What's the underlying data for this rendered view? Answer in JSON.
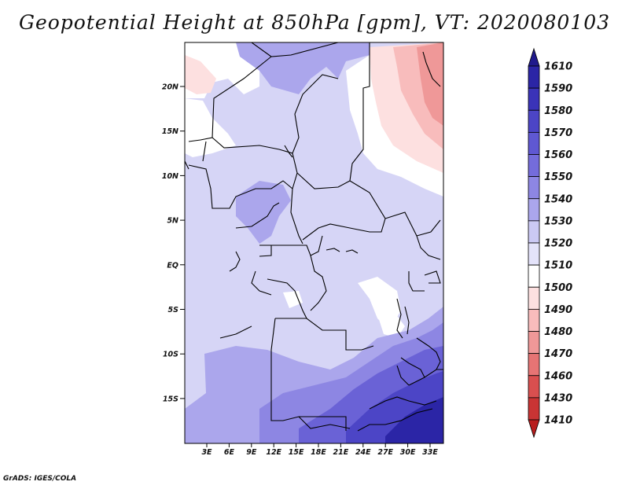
{
  "title": "Geopotential Height at 850hPa [gpm], VT: 2020080103",
  "credit": "GrADS: IGES/COLA",
  "lat_ticks": [
    "20N",
    "15N",
    "10N",
    "5N",
    "EQ",
    "5S",
    "10S",
    "15S"
  ],
  "lon_ticks": [
    "3E",
    "6E",
    "9E",
    "12E",
    "15E",
    "18E",
    "21E",
    "24E",
    "27E",
    "30E",
    "33E"
  ],
  "colorbar": {
    "levels": [
      "1610",
      "1590",
      "1580",
      "1570",
      "1560",
      "1550",
      "1540",
      "1530",
      "1520",
      "1510",
      "1500",
      "1490",
      "1480",
      "1470",
      "1460",
      "1430",
      "1410"
    ],
    "colors": [
      "#201a8c",
      "#2b25a6",
      "#3a33b8",
      "#4c45c6",
      "#5f58d2",
      "#746cdb",
      "#8d86e3",
      "#aba6ec",
      "#cbc9f4",
      "#e4e3fa",
      "#ffffff",
      "#fde0e0",
      "#f8bcbc",
      "#ef9898",
      "#e67474",
      "#d94f4f",
      "#c93434",
      "#b81e1e"
    ]
  },
  "field_colors": {
    "base": "#d6d5f6",
    "white": "#ffffff",
    "light": "#e6e5fb",
    "mid": "#aba6ec",
    "mid2": "#8d86e3",
    "dark": "#6a62d6",
    "darker": "#4c45c6",
    "darkest": "#2b25a6",
    "pink1": "#fde0e0",
    "pink2": "#f8bcbc",
    "pink3": "#ef9898",
    "border": "#000000"
  }
}
